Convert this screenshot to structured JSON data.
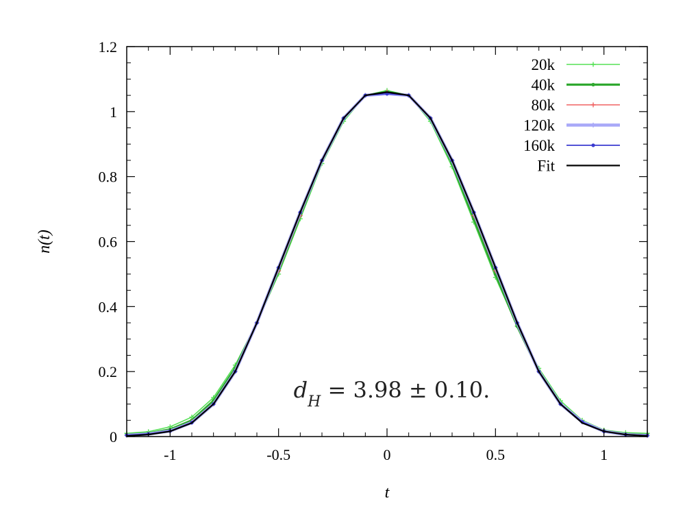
{
  "chart_data": {
    "type": "line",
    "xlabel": "t",
    "ylabel": "n(t)",
    "xlim": [
      -1.2,
      1.2
    ],
    "ylim": [
      0,
      1.2
    ],
    "grid": false,
    "legend_position": "top-right",
    "x_ticks": [
      -1,
      -0.5,
      0,
      0.5,
      1
    ],
    "x_tick_labels": [
      "-1",
      "-0.5",
      "0",
      "0.5",
      "1"
    ],
    "y_ticks": [
      0,
      0.2,
      0.4,
      0.6,
      0.8,
      1,
      1.2
    ],
    "y_tick_labels": [
      "0",
      "0.2",
      "0.4",
      "0.6",
      "0.8",
      "1",
      "1.2"
    ],
    "annotation": {
      "symbol": "d",
      "subscript": "H",
      "text": " = 3.98 ± 0.10."
    },
    "series": [
      {
        "name": "20k",
        "color": "#55e055",
        "width": 1.6,
        "marker": "plus",
        "x": [
          -1.2,
          -1.1,
          -1.0,
          -0.9,
          -0.8,
          -0.7,
          -0.6,
          -0.5,
          -0.4,
          -0.3,
          -0.2,
          -0.1,
          0.0,
          0.1,
          0.2,
          0.3,
          0.4,
          0.5,
          0.6,
          0.7,
          0.8,
          0.9,
          1.0,
          1.1,
          1.2
        ],
        "y": [
          0.01,
          0.015,
          0.03,
          0.06,
          0.12,
          0.22,
          0.35,
          0.5,
          0.67,
          0.84,
          0.97,
          1.05,
          1.065,
          1.05,
          0.97,
          0.83,
          0.66,
          0.49,
          0.34,
          0.21,
          0.11,
          0.05,
          0.02,
          0.012,
          0.01
        ]
      },
      {
        "name": "40k",
        "color": "#2fa82f",
        "width": 3.2,
        "marker": "dot",
        "x": [
          -1.2,
          -1.1,
          -1.0,
          -0.9,
          -0.8,
          -0.7,
          -0.6,
          -0.5,
          -0.4,
          -0.3,
          -0.2,
          -0.1,
          0.0,
          0.1,
          0.2,
          0.3,
          0.4,
          0.5,
          0.6,
          0.7,
          0.8,
          0.9,
          1.0,
          1.1,
          1.2
        ],
        "y": [
          0.006,
          0.01,
          0.022,
          0.05,
          0.11,
          0.21,
          0.35,
          0.51,
          0.68,
          0.85,
          0.98,
          1.05,
          1.06,
          1.05,
          0.98,
          0.84,
          0.67,
          0.5,
          0.34,
          0.2,
          0.1,
          0.045,
          0.018,
          0.008,
          0.005
        ]
      },
      {
        "name": "80k",
        "color": "#f06060",
        "width": 1.4,
        "marker": "plus",
        "x": [
          -1.2,
          -1.1,
          -1.0,
          -0.9,
          -0.8,
          -0.7,
          -0.6,
          -0.5,
          -0.4,
          -0.3,
          -0.2,
          -0.1,
          0.0,
          0.1,
          0.2,
          0.3,
          0.4,
          0.5,
          0.6,
          0.7,
          0.8,
          0.9,
          1.0,
          1.1,
          1.2
        ],
        "y": [
          0.004,
          0.008,
          0.018,
          0.045,
          0.1,
          0.2,
          0.35,
          0.51,
          0.68,
          0.85,
          0.98,
          1.05,
          1.06,
          1.05,
          0.98,
          0.85,
          0.68,
          0.51,
          0.35,
          0.2,
          0.1,
          0.045,
          0.016,
          0.006,
          0.003
        ]
      },
      {
        "name": "120k",
        "color": "#a8a8f8",
        "width": 4.5,
        "marker": "plus",
        "x": [
          -1.2,
          -1.1,
          -1.0,
          -0.9,
          -0.8,
          -0.7,
          -0.6,
          -0.5,
          -0.4,
          -0.3,
          -0.2,
          -0.1,
          0.0,
          0.1,
          0.2,
          0.3,
          0.4,
          0.5,
          0.6,
          0.7,
          0.8,
          0.9,
          1.0,
          1.1,
          1.2
        ],
        "y": [
          0.004,
          0.008,
          0.017,
          0.043,
          0.1,
          0.2,
          0.35,
          0.52,
          0.69,
          0.85,
          0.98,
          1.05,
          1.055,
          1.05,
          0.98,
          0.85,
          0.69,
          0.52,
          0.35,
          0.2,
          0.1,
          0.045,
          0.016,
          0.006,
          0.003
        ]
      },
      {
        "name": "160k",
        "color": "#3a3ad0",
        "width": 1.8,
        "marker": "dot",
        "x": [
          -1.2,
          -1.1,
          -1.0,
          -0.9,
          -0.8,
          -0.7,
          -0.6,
          -0.5,
          -0.4,
          -0.3,
          -0.2,
          -0.1,
          0.0,
          0.1,
          0.2,
          0.3,
          0.4,
          0.5,
          0.6,
          0.7,
          0.8,
          0.9,
          1.0,
          1.1,
          1.2
        ],
        "y": [
          0.004,
          0.008,
          0.017,
          0.043,
          0.1,
          0.2,
          0.35,
          0.52,
          0.69,
          0.85,
          0.98,
          1.05,
          1.055,
          1.05,
          0.98,
          0.85,
          0.69,
          0.52,
          0.35,
          0.2,
          0.1,
          0.045,
          0.016,
          0.006,
          0.003
        ]
      },
      {
        "name": "Fit",
        "color": "#000000",
        "width": 2.2,
        "marker": "none",
        "x": [
          -1.2,
          -1.1,
          -1.0,
          -0.9,
          -0.8,
          -0.7,
          -0.6,
          -0.5,
          -0.4,
          -0.3,
          -0.2,
          -0.1,
          0.0,
          0.1,
          0.2,
          0.3,
          0.4,
          0.5,
          0.6,
          0.7,
          0.8,
          0.9,
          1.0,
          1.1,
          1.2
        ],
        "y": [
          0.002,
          0.006,
          0.016,
          0.042,
          0.1,
          0.2,
          0.35,
          0.52,
          0.69,
          0.85,
          0.98,
          1.05,
          1.06,
          1.05,
          0.98,
          0.85,
          0.69,
          0.52,
          0.35,
          0.2,
          0.1,
          0.042,
          0.016,
          0.006,
          0.002
        ]
      }
    ]
  }
}
